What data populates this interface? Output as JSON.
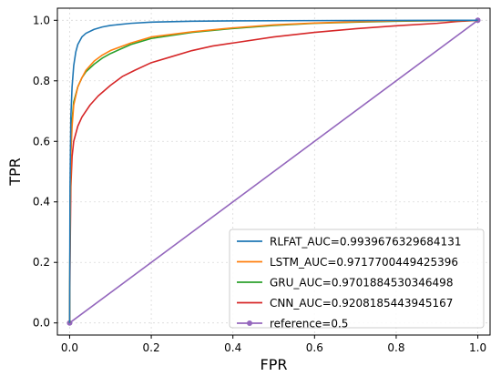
{
  "chart_data": {
    "type": "line",
    "xlabel": "FPR",
    "ylabel": "TPR",
    "xlim": [
      -0.03,
      1.03
    ],
    "ylim": [
      -0.04,
      1.04
    ],
    "xticks": [
      "0.0",
      "0.2",
      "0.4",
      "0.6",
      "0.8",
      "1.0"
    ],
    "yticks": [
      "0.0",
      "0.2",
      "0.4",
      "0.6",
      "0.8",
      "1.0"
    ],
    "grid": true,
    "legend_position": "lower-right",
    "series": [
      {
        "name": "RLFAT_AUC=0.9939676329684131",
        "color": "#1f77b4",
        "points": [
          [
            0,
            0
          ],
          [
            0.001,
            0.45
          ],
          [
            0.003,
            0.68
          ],
          [
            0.006,
            0.78
          ],
          [
            0.01,
            0.85
          ],
          [
            0.015,
            0.895
          ],
          [
            0.02,
            0.92
          ],
          [
            0.03,
            0.945
          ],
          [
            0.04,
            0.957
          ],
          [
            0.06,
            0.97
          ],
          [
            0.08,
            0.978
          ],
          [
            0.1,
            0.983
          ],
          [
            0.15,
            0.99
          ],
          [
            0.2,
            0.994
          ],
          [
            0.3,
            0.997
          ],
          [
            0.4,
            0.998
          ],
          [
            0.6,
            0.999
          ],
          [
            1.0,
            1.0
          ]
        ]
      },
      {
        "name": "LSTM_AUC=0.9717700449425396",
        "color": "#ff7f0e",
        "points": [
          [
            0,
            0
          ],
          [
            0.001,
            0.3
          ],
          [
            0.003,
            0.55
          ],
          [
            0.006,
            0.65
          ],
          [
            0.01,
            0.72
          ],
          [
            0.02,
            0.78
          ],
          [
            0.03,
            0.81
          ],
          [
            0.04,
            0.835
          ],
          [
            0.06,
            0.865
          ],
          [
            0.08,
            0.885
          ],
          [
            0.1,
            0.9
          ],
          [
            0.15,
            0.925
          ],
          [
            0.2,
            0.945
          ],
          [
            0.3,
            0.962
          ],
          [
            0.4,
            0.975
          ],
          [
            0.5,
            0.985
          ],
          [
            0.6,
            0.991
          ],
          [
            0.7,
            0.995
          ],
          [
            0.8,
            0.998
          ],
          [
            1.0,
            1.0
          ]
        ]
      },
      {
        "name": "GRU_AUC=0.9701884530346498",
        "color": "#2ca02c",
        "points": [
          [
            0,
            0
          ],
          [
            0.001,
            0.3
          ],
          [
            0.003,
            0.6
          ],
          [
            0.006,
            0.67
          ],
          [
            0.01,
            0.73
          ],
          [
            0.02,
            0.78
          ],
          [
            0.03,
            0.81
          ],
          [
            0.04,
            0.83
          ],
          [
            0.06,
            0.855
          ],
          [
            0.08,
            0.875
          ],
          [
            0.1,
            0.89
          ],
          [
            0.15,
            0.92
          ],
          [
            0.2,
            0.94
          ],
          [
            0.3,
            0.96
          ],
          [
            0.4,
            0.973
          ],
          [
            0.5,
            0.983
          ],
          [
            0.6,
            0.99
          ],
          [
            0.7,
            0.994
          ],
          [
            0.8,
            0.997
          ],
          [
            1.0,
            1.0
          ]
        ]
      },
      {
        "name": "CNN_AUC=0.9208185443945167",
        "color": "#d62728",
        "points": [
          [
            0,
            0
          ],
          [
            0.001,
            0.2
          ],
          [
            0.003,
            0.45
          ],
          [
            0.006,
            0.55
          ],
          [
            0.01,
            0.6
          ],
          [
            0.02,
            0.65
          ],
          [
            0.03,
            0.68
          ],
          [
            0.05,
            0.72
          ],
          [
            0.07,
            0.75
          ],
          [
            0.1,
            0.785
          ],
          [
            0.13,
            0.815
          ],
          [
            0.16,
            0.835
          ],
          [
            0.2,
            0.86
          ],
          [
            0.25,
            0.88
          ],
          [
            0.3,
            0.9
          ],
          [
            0.35,
            0.915
          ],
          [
            0.4,
            0.925
          ],
          [
            0.5,
            0.945
          ],
          [
            0.6,
            0.96
          ],
          [
            0.7,
            0.972
          ],
          [
            0.8,
            0.982
          ],
          [
            0.9,
            0.99
          ],
          [
            0.95,
            0.996
          ],
          [
            1.0,
            1.0
          ]
        ]
      },
      {
        "name": "reference=0.5",
        "color": "#9467bd",
        "marker": "circle",
        "points": [
          [
            0,
            0
          ],
          [
            1,
            1
          ]
        ]
      }
    ]
  }
}
